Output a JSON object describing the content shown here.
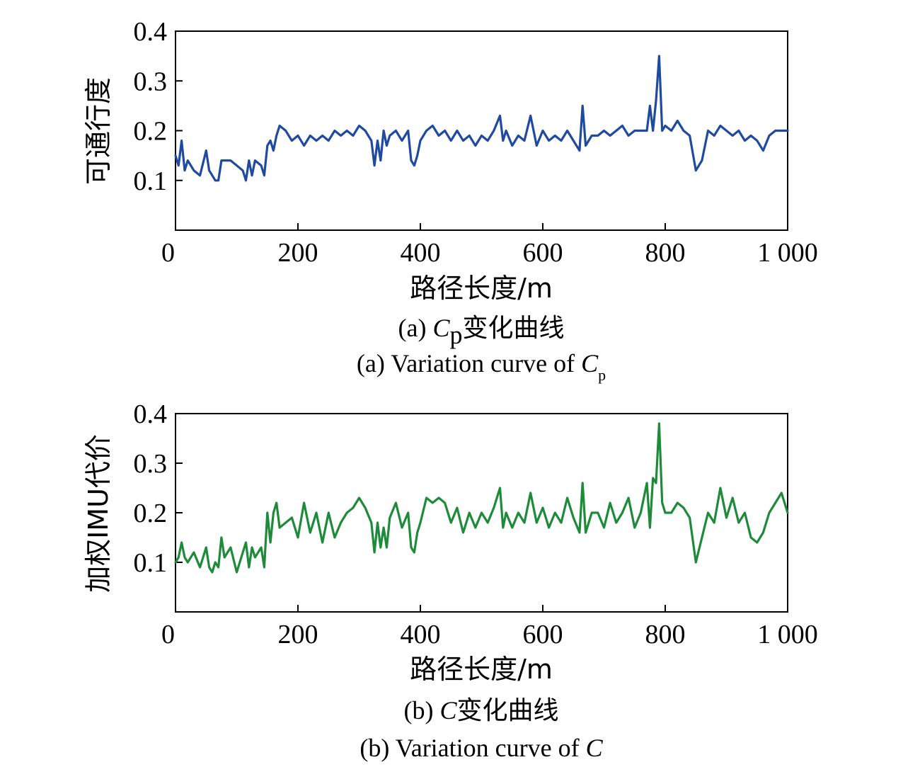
{
  "chart_data": [
    {
      "type": "line",
      "xlabel": "路径长度/m",
      "ylabel": "可通行度",
      "xlim": [
        0,
        1000
      ],
      "ylim": [
        0,
        0.4
      ],
      "xticks": [
        "0",
        "200",
        "400",
        "600",
        "800",
        "1 000"
      ],
      "yticks": [
        "0.1",
        "0.2",
        "0.3",
        "0.4"
      ],
      "caption_cn": {
        "prefix": "(a) ",
        "var": "C",
        "sub": "p",
        "suffix": "变化曲线"
      },
      "caption_en": {
        "prefix": "(a) Variation curve of ",
        "var": "C",
        "sub": "p"
      },
      "color": "#1f4aa0",
      "series": [
        {
          "x": [
            0,
            5,
            10,
            15,
            20,
            30,
            40,
            50,
            55,
            60,
            65,
            70,
            75,
            80,
            90,
            100,
            110,
            115,
            120,
            125,
            130,
            140,
            145,
            150,
            155,
            160,
            165,
            170,
            180,
            190,
            200,
            210,
            220,
            230,
            240,
            250,
            260,
            270,
            280,
            290,
            300,
            310,
            320,
            325,
            330,
            335,
            340,
            345,
            350,
            360,
            370,
            380,
            385,
            390,
            395,
            400,
            410,
            420,
            430,
            440,
            450,
            460,
            470,
            480,
            490,
            500,
            510,
            520,
            530,
            535,
            540,
            550,
            560,
            570,
            580,
            590,
            600,
            610,
            620,
            630,
            640,
            650,
            660,
            665,
            670,
            680,
            690,
            700,
            710,
            720,
            730,
            740,
            750,
            760,
            770,
            775,
            780,
            785,
            790,
            795,
            800,
            810,
            820,
            830,
            840,
            850,
            860,
            870,
            880,
            890,
            900,
            910,
            920,
            930,
            940,
            950,
            960,
            970,
            980,
            990,
            1000
          ],
          "y": [
            0.15,
            0.13,
            0.18,
            0.12,
            0.14,
            0.12,
            0.11,
            0.16,
            0.12,
            0.11,
            0.1,
            0.1,
            0.14,
            0.14,
            0.14,
            0.13,
            0.12,
            0.1,
            0.14,
            0.11,
            0.14,
            0.13,
            0.11,
            0.17,
            0.18,
            0.16,
            0.19,
            0.21,
            0.2,
            0.18,
            0.19,
            0.17,
            0.19,
            0.18,
            0.19,
            0.18,
            0.2,
            0.19,
            0.2,
            0.19,
            0.21,
            0.2,
            0.18,
            0.13,
            0.18,
            0.14,
            0.2,
            0.17,
            0.19,
            0.2,
            0.18,
            0.2,
            0.14,
            0.13,
            0.15,
            0.18,
            0.2,
            0.21,
            0.19,
            0.2,
            0.18,
            0.2,
            0.18,
            0.19,
            0.17,
            0.19,
            0.18,
            0.2,
            0.23,
            0.18,
            0.2,
            0.17,
            0.19,
            0.18,
            0.23,
            0.17,
            0.2,
            0.18,
            0.19,
            0.18,
            0.2,
            0.18,
            0.16,
            0.25,
            0.17,
            0.19,
            0.19,
            0.2,
            0.19,
            0.2,
            0.21,
            0.19,
            0.2,
            0.2,
            0.2,
            0.25,
            0.2,
            0.26,
            0.35,
            0.2,
            0.21,
            0.2,
            0.22,
            0.2,
            0.19,
            0.12,
            0.14,
            0.2,
            0.19,
            0.21,
            0.2,
            0.19,
            0.2,
            0.18,
            0.19,
            0.18,
            0.16,
            0.19,
            0.2,
            0.2,
            0.2
          ]
        }
      ]
    },
    {
      "type": "line",
      "xlabel": "路径长度/m",
      "ylabel": "加权IMU代价",
      "xlim": [
        0,
        1000
      ],
      "ylim": [
        0,
        0.4
      ],
      "xticks": [
        "0",
        "200",
        "400",
        "600",
        "800",
        "1 000"
      ],
      "yticks": [
        "0.1",
        "0.2",
        "0.3",
        "0.4"
      ],
      "caption_cn": {
        "prefix": "(b) ",
        "var": "C",
        "sub": "",
        "suffix": "变化曲线"
      },
      "caption_en": {
        "prefix": "(b) Variation curve of ",
        "var": "C",
        "sub": ""
      },
      "color": "#1e8b3a",
      "series": [
        {
          "x": [
            0,
            5,
            10,
            15,
            20,
            30,
            40,
            50,
            55,
            60,
            65,
            70,
            75,
            80,
            90,
            100,
            110,
            115,
            120,
            125,
            130,
            140,
            145,
            150,
            155,
            160,
            165,
            170,
            180,
            190,
            200,
            210,
            220,
            230,
            240,
            250,
            260,
            270,
            280,
            290,
            300,
            310,
            320,
            325,
            330,
            335,
            340,
            345,
            350,
            360,
            370,
            380,
            385,
            390,
            395,
            400,
            410,
            420,
            430,
            440,
            450,
            460,
            470,
            480,
            490,
            500,
            510,
            520,
            530,
            535,
            540,
            550,
            560,
            570,
            580,
            590,
            600,
            610,
            620,
            630,
            640,
            650,
            660,
            665,
            670,
            680,
            690,
            700,
            710,
            720,
            730,
            740,
            750,
            760,
            770,
            775,
            780,
            785,
            790,
            795,
            800,
            810,
            820,
            830,
            840,
            850,
            860,
            870,
            880,
            890,
            900,
            910,
            920,
            930,
            940,
            950,
            960,
            970,
            980,
            990,
            1000
          ],
          "y": [
            0.1,
            0.11,
            0.14,
            0.11,
            0.1,
            0.12,
            0.09,
            0.13,
            0.09,
            0.08,
            0.1,
            0.09,
            0.15,
            0.11,
            0.13,
            0.08,
            0.12,
            0.14,
            0.09,
            0.13,
            0.11,
            0.13,
            0.09,
            0.2,
            0.14,
            0.2,
            0.22,
            0.17,
            0.18,
            0.19,
            0.15,
            0.22,
            0.16,
            0.2,
            0.14,
            0.2,
            0.15,
            0.18,
            0.2,
            0.21,
            0.23,
            0.21,
            0.18,
            0.12,
            0.18,
            0.13,
            0.17,
            0.13,
            0.19,
            0.22,
            0.17,
            0.2,
            0.13,
            0.12,
            0.16,
            0.18,
            0.23,
            0.22,
            0.23,
            0.22,
            0.18,
            0.21,
            0.16,
            0.2,
            0.17,
            0.2,
            0.18,
            0.21,
            0.25,
            0.17,
            0.2,
            0.17,
            0.2,
            0.18,
            0.24,
            0.18,
            0.21,
            0.17,
            0.2,
            0.18,
            0.23,
            0.19,
            0.16,
            0.26,
            0.16,
            0.2,
            0.2,
            0.17,
            0.22,
            0.18,
            0.2,
            0.23,
            0.17,
            0.2,
            0.26,
            0.17,
            0.27,
            0.26,
            0.38,
            0.22,
            0.2,
            0.2,
            0.22,
            0.21,
            0.19,
            0.1,
            0.15,
            0.2,
            0.18,
            0.25,
            0.19,
            0.23,
            0.18,
            0.2,
            0.15,
            0.14,
            0.16,
            0.2,
            0.22,
            0.24,
            0.2
          ]
        }
      ]
    }
  ]
}
